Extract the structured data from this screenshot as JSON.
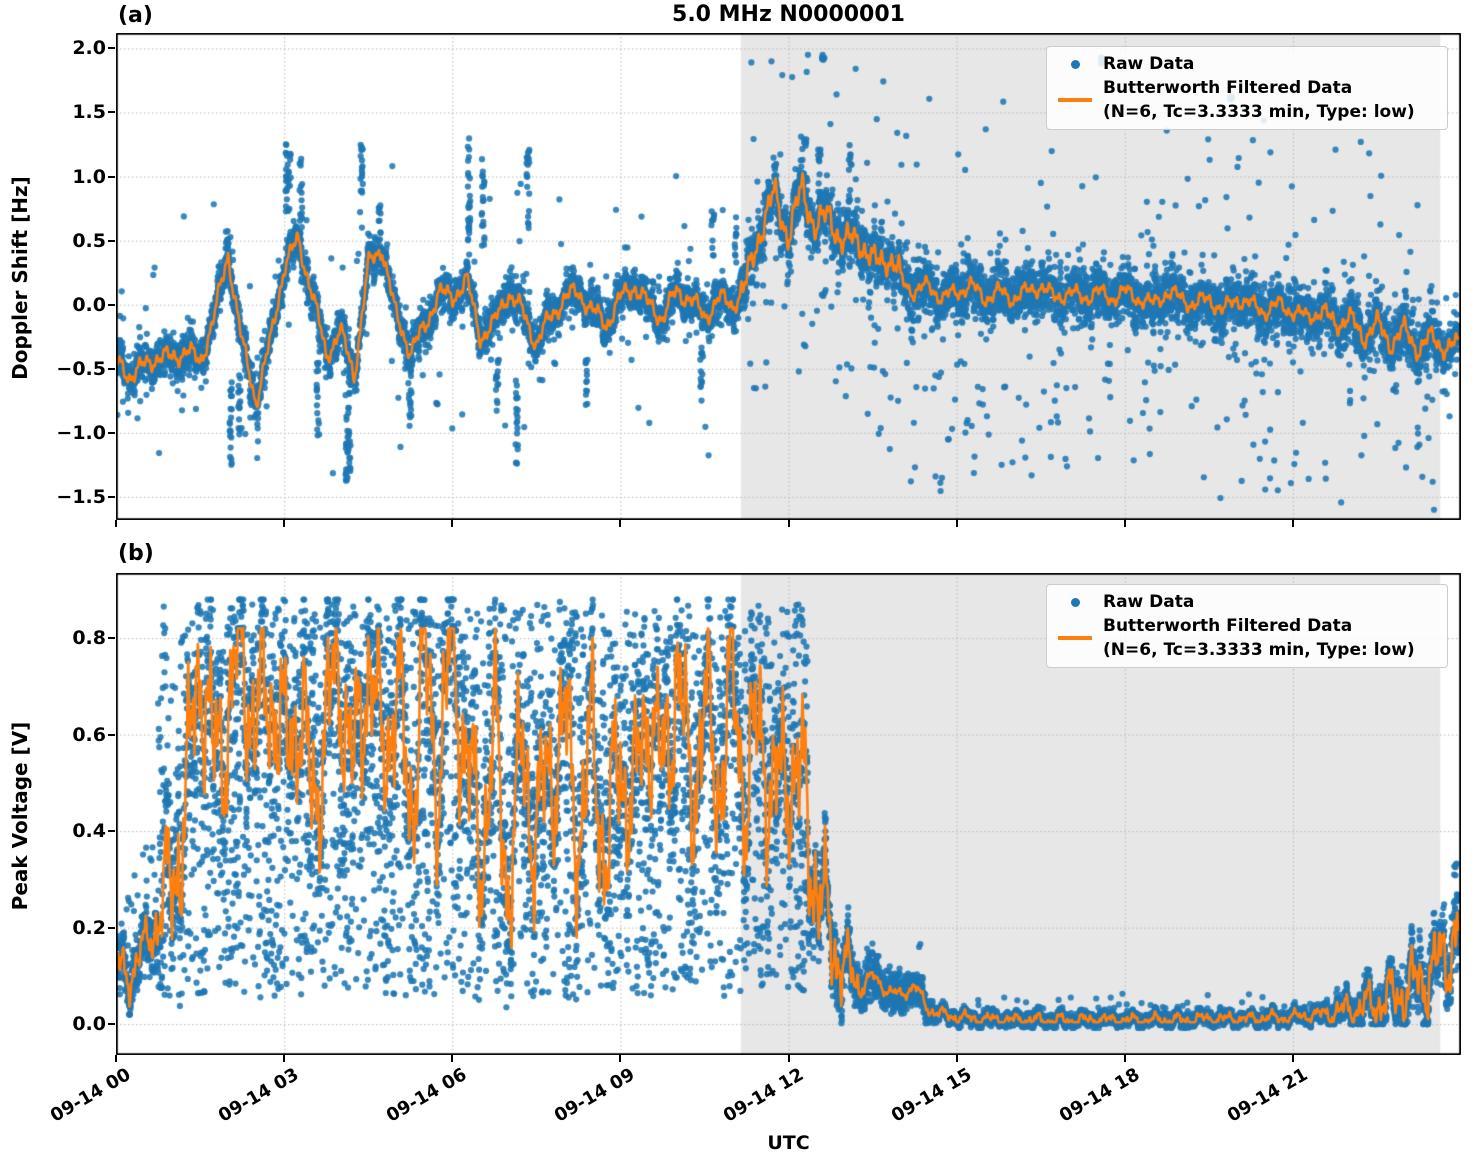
{
  "figure": {
    "title": "5.0 MHz N0000001",
    "xlabel": "UTC",
    "panel_a_label": "(a)",
    "panel_b_label": "(b)",
    "legend": {
      "raw_label": "Raw Data",
      "filtered_label": "Butterworth Filtered Data",
      "filtered_sublabel": "(N=6, Tc=3.3333 min, Type: low)"
    },
    "colors": {
      "raw": "#1f77b4",
      "filtered": "#ff7f0e",
      "shade": "#e7e7e7",
      "grid": "#b8b8b8",
      "spine": "#000000"
    },
    "xtick_labels": [
      "09-14 00",
      "09-14 03",
      "09-14 06",
      "09-14 09",
      "09-14 12",
      "09-14 15",
      "09-14 18",
      "09-14 21"
    ],
    "xtick_hours": [
      0,
      3,
      6,
      9,
      12,
      15,
      18,
      21
    ]
  },
  "chart_data": [
    {
      "id": "a",
      "type": "scatter",
      "panel_label": "(a)",
      "ylabel": "Doppler Shift [Hz]",
      "ylim": [
        -1.68,
        2.12
      ],
      "ytick_labels": [
        "2.0",
        "1.5",
        "1.0",
        "0.5",
        "0.0",
        "−0.5",
        "−1.0",
        "−1.5"
      ],
      "ytick_values": [
        2.0,
        1.5,
        1.0,
        0.5,
        0.0,
        -0.5,
        -1.0,
        -1.5
      ],
      "xlim_hours": [
        0,
        24
      ],
      "grid": true,
      "legend_position": "upper right",
      "shaded_region_hours": [
        11.15,
        23.63
      ],
      "series": [
        {
          "name": "Raw Data",
          "style": "scatter",
          "band_sd_white": 0.12,
          "band_sd_shaded": 0.17,
          "outlier_prob_white": 0.012,
          "outlier_prob_shaded": 0.05,
          "outlier_spikes": [
            [
              2.05,
              -1.3,
              -0.6
            ],
            [
              2.2,
              -1.05,
              -0.5
            ],
            [
              3.05,
              0.6,
              1.3
            ],
            [
              3.1,
              0.9,
              1.25
            ],
            [
              3.3,
              0.6,
              1.15
            ],
            [
              3.6,
              -1.05,
              -0.45
            ],
            [
              4.12,
              -1.45,
              -0.7
            ],
            [
              4.17,
              -1.3,
              -0.6
            ],
            [
              4.38,
              0.6,
              1.25
            ],
            [
              4.7,
              0.4,
              0.8
            ],
            [
              5.25,
              -0.95,
              -0.5
            ],
            [
              6.3,
              0.5,
              1.4
            ],
            [
              6.55,
              0.45,
              1.2
            ],
            [
              6.8,
              -0.85,
              -0.4
            ],
            [
              7.15,
              -1.25,
              -0.55
            ],
            [
              7.35,
              0.55,
              1.25
            ],
            [
              8.4,
              -0.8,
              -0.35
            ],
            [
              10.45,
              -0.75,
              -0.3
            ],
            [
              10.65,
              0.35,
              0.75
            ],
            [
              11.05,
              0.3,
              0.7
            ],
            [
              12.3,
              0.9,
              1.3
            ],
            [
              12.55,
              0.8,
              1.25
            ],
            [
              13.1,
              0.8,
              1.2
            ],
            [
              17.6,
              1.88,
              1.93
            ],
            [
              19.9,
              1.6,
              1.64
            ],
            [
              12.62,
              1.9,
              1.93
            ]
          ]
        },
        {
          "name": "Butterworth Filtered Data (N=6, Tc=3.3333 min, Type: low)",
          "style": "line",
          "x_start_hour": 0,
          "x_step_hours": 0.25,
          "values": [
            -0.45,
            -0.55,
            -0.48,
            -0.4,
            -0.42,
            -0.35,
            -0.45,
            -0.1,
            0.4,
            -0.3,
            -0.75,
            -0.3,
            0.3,
            0.5,
            0.1,
            -0.4,
            -0.2,
            -0.55,
            0.3,
            0.45,
            -0.1,
            -0.35,
            -0.2,
            0.1,
            0.05,
            0.2,
            -0.25,
            -0.15,
            0.1,
            -0.05,
            -0.3,
            -0.1,
            0.05,
            0.1,
            -0.05,
            -0.15,
            0.05,
            0.15,
            0.0,
            -0.1,
            0.1,
            0.05,
            -0.1,
            0.05,
            0.0,
            0.15,
            0.6,
            0.85,
            0.55,
            0.9,
            0.6,
            0.7,
            0.45,
            0.55,
            0.3,
            0.4,
            0.2,
            0.1,
            0.15,
            0.05,
            0.1,
            0.15,
            0.05,
            0.1,
            0.05,
            0.1,
            0.15,
            0.05,
            0.1,
            0.05,
            0.1,
            0.05,
            0.1,
            0.05,
            0.0,
            0.1,
            0.05,
            0.0,
            0.05,
            -0.05,
            0.05,
            0.0,
            -0.05,
            0.0,
            -0.05,
            -0.1,
            -0.05,
            -0.15,
            -0.1,
            -0.25,
            -0.15,
            -0.3,
            -0.2,
            -0.35,
            -0.25,
            -0.35,
            -0.3
          ]
        }
      ]
    },
    {
      "id": "b",
      "type": "scatter",
      "panel_label": "(b)",
      "ylabel": "Peak Voltage [V]",
      "ylim": [
        -0.064,
        0.935
      ],
      "ytick_labels": [
        "0.8",
        "0.6",
        "0.4",
        "0.2",
        "0.0"
      ],
      "ytick_values": [
        0.8,
        0.6,
        0.4,
        0.2,
        0.0
      ],
      "xlim_hours": [
        0,
        24
      ],
      "grid": true,
      "legend_position": "upper right",
      "shaded_region_hours": [
        11.15,
        23.63
      ],
      "series": [
        {
          "name": "Raw Data",
          "style": "scatter",
          "active_hours": [
            0.75,
            12.35
          ],
          "active_fill_range": [
            0.05,
            0.88
          ],
          "decay_hours": [
            12.35,
            14.6
          ],
          "flat_level": 0.008,
          "rise_start_hour": 21.4,
          "outlier_spikes": [
            [
              13.55,
              0.05,
              0.12
            ],
            [
              13.8,
              0.04,
              0.1
            ],
            [
              14.1,
              0.05,
              0.11
            ],
            [
              14.35,
              0.04,
              0.17
            ],
            [
              23.9,
              0.3,
              0.37
            ]
          ]
        },
        {
          "name": "Butterworth Filtered Data (N=6, Tc=3.3333 min, Type: low)",
          "style": "line",
          "x_start_hour": 0,
          "x_step_hours": 0.25,
          "values": [
            0.12,
            0.1,
            0.16,
            0.22,
            0.3,
            0.45,
            0.78,
            0.52,
            0.65,
            0.78,
            0.6,
            0.72,
            0.55,
            0.68,
            0.45,
            0.62,
            0.74,
            0.5,
            0.78,
            0.55,
            0.7,
            0.45,
            0.74,
            0.52,
            0.78,
            0.55,
            0.35,
            0.6,
            0.3,
            0.55,
            0.4,
            0.52,
            0.62,
            0.4,
            0.58,
            0.35,
            0.55,
            0.45,
            0.68,
            0.5,
            0.74,
            0.48,
            0.65,
            0.5,
            0.7,
            0.48,
            0.62,
            0.45,
            0.55,
            0.48,
            0.3,
            0.18,
            0.12,
            0.08,
            0.1,
            0.07,
            0.06,
            0.08,
            0.03,
            0.02,
            0.015,
            0.012,
            0.01,
            0.01,
            0.008,
            0.01,
            0.008,
            0.008,
            0.008,
            0.008,
            0.01,
            0.008,
            0.008,
            0.008,
            0.008,
            0.01,
            0.008,
            0.01,
            0.012,
            0.01,
            0.012,
            0.01,
            0.015,
            0.012,
            0.015,
            0.018,
            0.02,
            0.025,
            0.03,
            0.035,
            0.045,
            0.055,
            0.07,
            0.09,
            0.11,
            0.15,
            0.2
          ]
        }
      ]
    }
  ]
}
